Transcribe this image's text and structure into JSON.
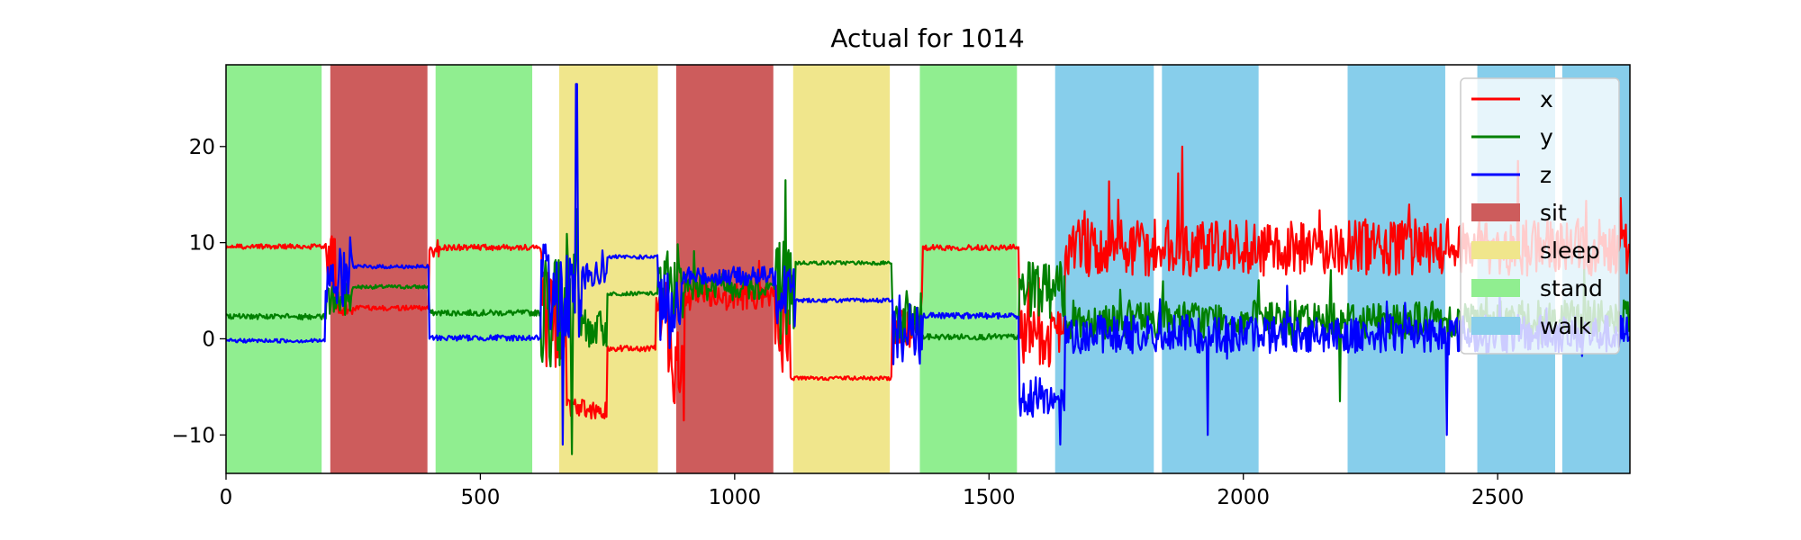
{
  "chart_data": {
    "type": "line",
    "title": "Actual for 1014",
    "xlabel": "",
    "ylabel": "",
    "xlim": [
      0,
      2760
    ],
    "ylim": [
      -14,
      28.5
    ],
    "x_ticks": [
      0,
      500,
      1000,
      1500,
      2000,
      2500
    ],
    "y_ticks": [
      -10,
      0,
      10,
      20
    ],
    "grid": false,
    "legend_position": "top-right",
    "activity_colors": {
      "sit": "#cd5c5c",
      "sleep": "#f0e68c",
      "stand": "#90ee90",
      "walk": "#87ceeb"
    },
    "activities": [
      {
        "label": "stand",
        "start": 0,
        "end": 188
      },
      {
        "label": "sit",
        "start": 205,
        "end": 396
      },
      {
        "label": "stand",
        "start": 412,
        "end": 602
      },
      {
        "label": "sleep",
        "start": 655,
        "end": 849
      },
      {
        "label": "sit",
        "start": 885,
        "end": 1076
      },
      {
        "label": "sleep",
        "start": 1115,
        "end": 1305
      },
      {
        "label": "stand",
        "start": 1364,
        "end": 1555
      },
      {
        "label": "walk",
        "start": 1630,
        "end": 1824
      },
      {
        "label": "walk",
        "start": 1840,
        "end": 2030
      },
      {
        "label": "walk",
        "start": 2205,
        "end": 2397
      },
      {
        "label": "walk",
        "start": 2460,
        "end": 2613
      },
      {
        "label": "walk",
        "start": 2627,
        "end": 2760
      }
    ],
    "series": [
      {
        "name": "x",
        "color": "#ff0000",
        "levels": [
          {
            "start": 0,
            "end": 195,
            "mean": 9.6,
            "noise": 0.25
          },
          {
            "start": 195,
            "end": 215,
            "mean": 8,
            "noise": 3
          },
          {
            "start": 215,
            "end": 250,
            "mean": 3,
            "noise": 0.6
          },
          {
            "start": 250,
            "end": 400,
            "mean": 3.2,
            "noise": 0.25
          },
          {
            "start": 400,
            "end": 420,
            "mean": 9.5,
            "noise": 1
          },
          {
            "start": 420,
            "end": 620,
            "mean": 9.5,
            "noise": 0.3
          },
          {
            "start": 620,
            "end": 670,
            "mean": 2,
            "noise": 5
          },
          {
            "start": 670,
            "end": 750,
            "mean": -7.3,
            "noise": 1
          },
          {
            "start": 750,
            "end": 845,
            "mean": -1,
            "noise": 0.3
          },
          {
            "start": 845,
            "end": 870,
            "mean": 3,
            "noise": 3
          },
          {
            "start": 870,
            "end": 900,
            "mean": -3,
            "noise": 4
          },
          {
            "start": 900,
            "end": 1080,
            "mean": 4.5,
            "noise": 1.5
          },
          {
            "start": 1080,
            "end": 1110,
            "mean": 1,
            "noise": 5
          },
          {
            "start": 1110,
            "end": 1310,
            "mean": -4.1,
            "noise": 0.2
          },
          {
            "start": 1310,
            "end": 1370,
            "mean": 1,
            "noise": 2
          },
          {
            "start": 1370,
            "end": 1560,
            "mean": 9.5,
            "noise": 0.3
          },
          {
            "start": 1560,
            "end": 1650,
            "mean": 0,
            "noise": 3
          },
          {
            "start": 1650,
            "end": 2780,
            "mean": 9.5,
            "noise": 3
          }
        ]
      },
      {
        "name": "y",
        "color": "#008000",
        "levels": [
          {
            "start": 0,
            "end": 195,
            "mean": 2.3,
            "noise": 0.3
          },
          {
            "start": 195,
            "end": 250,
            "mean": 4,
            "noise": 2
          },
          {
            "start": 250,
            "end": 400,
            "mean": 5.4,
            "noise": 0.2
          },
          {
            "start": 400,
            "end": 620,
            "mean": 2.7,
            "noise": 0.3
          },
          {
            "start": 620,
            "end": 700,
            "mean": 3,
            "noise": 6
          },
          {
            "start": 700,
            "end": 750,
            "mean": 1,
            "noise": 2
          },
          {
            "start": 750,
            "end": 850,
            "mean": 4.7,
            "noise": 0.2
          },
          {
            "start": 850,
            "end": 900,
            "mean": 6,
            "noise": 4
          },
          {
            "start": 900,
            "end": 1080,
            "mean": 5.5,
            "noise": 1.5
          },
          {
            "start": 1080,
            "end": 1120,
            "mean": 5,
            "noise": 6
          },
          {
            "start": 1120,
            "end": 1310,
            "mean": 7.9,
            "noise": 0.2
          },
          {
            "start": 1310,
            "end": 1370,
            "mean": 2,
            "noise": 3
          },
          {
            "start": 1370,
            "end": 1560,
            "mean": 0.2,
            "noise": 0.3
          },
          {
            "start": 1560,
            "end": 1650,
            "mean": 5,
            "noise": 3
          },
          {
            "start": 1650,
            "end": 2780,
            "mean": 2,
            "noise": 2
          }
        ]
      },
      {
        "name": "z",
        "color": "#0000ff",
        "levels": [
          {
            "start": 0,
            "end": 195,
            "mean": -0.2,
            "noise": 0.2
          },
          {
            "start": 195,
            "end": 250,
            "mean": 6,
            "noise": 3
          },
          {
            "start": 250,
            "end": 400,
            "mean": 7.5,
            "noise": 0.2
          },
          {
            "start": 400,
            "end": 620,
            "mean": 0.1,
            "noise": 0.3
          },
          {
            "start": 620,
            "end": 700,
            "mean": 5,
            "noise": 5
          },
          {
            "start": 700,
            "end": 750,
            "mean": 6.5,
            "noise": 1.5
          },
          {
            "start": 750,
            "end": 850,
            "mean": 8.5,
            "noise": 0.2
          },
          {
            "start": 850,
            "end": 900,
            "mean": 3,
            "noise": 4
          },
          {
            "start": 900,
            "end": 1080,
            "mean": 6.5,
            "noise": 1
          },
          {
            "start": 1080,
            "end": 1120,
            "mean": 5,
            "noise": 4
          },
          {
            "start": 1120,
            "end": 1310,
            "mean": 4,
            "noise": 0.2
          },
          {
            "start": 1310,
            "end": 1370,
            "mean": 1,
            "noise": 4
          },
          {
            "start": 1370,
            "end": 1560,
            "mean": 2.4,
            "noise": 0.3
          },
          {
            "start": 1560,
            "end": 1650,
            "mean": -6,
            "noise": 2
          },
          {
            "start": 1650,
            "end": 2780,
            "mean": 0.5,
            "noise": 2
          }
        ]
      }
    ],
    "spikes": [
      {
        "series": "z",
        "x": 689,
        "y": 26.5
      },
      {
        "series": "z",
        "x": 662,
        "y": -11
      },
      {
        "series": "y",
        "x": 680,
        "y": -12
      },
      {
        "series": "y",
        "x": 1100,
        "y": 16.5
      },
      {
        "series": "x",
        "x": 900,
        "y": -8.5
      },
      {
        "series": "z",
        "x": 1640,
        "y": -11
      },
      {
        "series": "x",
        "x": 1880,
        "y": 20
      },
      {
        "series": "z",
        "x": 1930,
        "y": -10
      },
      {
        "series": "y",
        "x": 2190,
        "y": -6.5
      },
      {
        "series": "x",
        "x": 2540,
        "y": 18.5
      },
      {
        "series": "z",
        "x": 2400,
        "y": -10
      },
      {
        "series": "y",
        "x": 690,
        "y": 13.5
      }
    ],
    "legend": [
      {
        "label": "x",
        "kind": "line",
        "color": "#ff0000"
      },
      {
        "label": "y",
        "kind": "line",
        "color": "#008000"
      },
      {
        "label": "z",
        "kind": "line",
        "color": "#0000ff"
      },
      {
        "label": "sit",
        "kind": "patch",
        "color": "#cd5c5c"
      },
      {
        "label": "sleep",
        "kind": "patch",
        "color": "#f0e68c"
      },
      {
        "label": "stand",
        "kind": "patch",
        "color": "#90ee90"
      },
      {
        "label": "walk",
        "kind": "patch",
        "color": "#87ceeb"
      }
    ]
  }
}
